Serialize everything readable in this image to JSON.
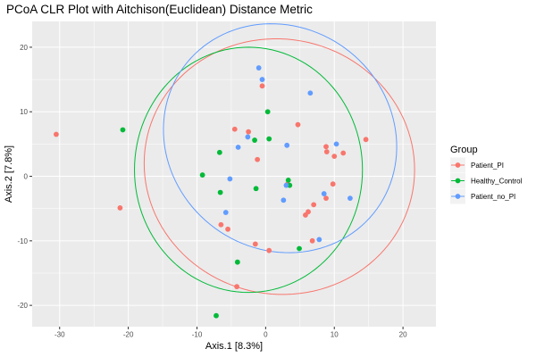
{
  "chart_data": {
    "type": "scatter",
    "title": "PCoA CLR Plot with Aitchison(Euclidean) Distance Metric",
    "xlabel": "Axis.1   [8.3%]",
    "ylabel": "Axis.2   [7.8%]",
    "xlim": [
      -34,
      24.8
    ],
    "ylim": [
      -23.3,
      24
    ],
    "x_ticks": [
      -30,
      -20,
      -10,
      0,
      10,
      20
    ],
    "y_ticks": [
      -20,
      -10,
      0,
      10,
      20
    ],
    "grid": true,
    "legend": {
      "title": "Group",
      "placement": "right"
    },
    "series": [
      {
        "name": "Patient_PI",
        "color": "#F8766D",
        "points": [
          [
            -30.5,
            6.5
          ],
          [
            -21.2,
            -4.9
          ],
          [
            -4.5,
            7.3
          ],
          [
            -2.5,
            6.9
          ],
          [
            -1.2,
            2.6
          ],
          [
            -6.5,
            -7.5
          ],
          [
            -5.5,
            -8.2
          ],
          [
            -1.5,
            -10.5
          ],
          [
            0.5,
            -11.5
          ],
          [
            -4.2,
            -17.1
          ],
          [
            -0.5,
            14.0
          ],
          [
            4.7,
            8.0
          ],
          [
            3.2,
            -1.2
          ],
          [
            6.2,
            -5.5
          ],
          [
            7.0,
            -4.4
          ],
          [
            5.8,
            -6.0
          ],
          [
            6.8,
            -10.0
          ],
          [
            8.8,
            -3.4
          ],
          [
            9.8,
            -1.2
          ],
          [
            8.8,
            4.6
          ],
          [
            8.9,
            3.8
          ],
          [
            11.3,
            3.6
          ],
          [
            10.0,
            3.1
          ],
          [
            14.6,
            5.7
          ]
        ]
      },
      {
        "name": "Healthy_Control",
        "color": "#00BA38",
        "points": [
          [
            -20.8,
            7.2
          ],
          [
            -9.2,
            0.2
          ],
          [
            -6.7,
            3.7
          ],
          [
            -6.6,
            -2.5
          ],
          [
            -1.6,
            5.6
          ],
          [
            0.3,
            10.0
          ],
          [
            0.5,
            5.8
          ],
          [
            -1.4,
            -1.9
          ],
          [
            3.3,
            -0.6
          ],
          [
            3.5,
            -1.4
          ],
          [
            4.9,
            -11.2
          ],
          [
            -4.1,
            -13.3
          ],
          [
            -7.2,
            -21.6
          ]
        ]
      },
      {
        "name": "Patient_no_PI",
        "color": "#619CFF",
        "points": [
          [
            -1.0,
            16.8
          ],
          [
            -0.5,
            15.0
          ],
          [
            -2.6,
            6.1
          ],
          [
            -4.0,
            4.5
          ],
          [
            -5.2,
            -0.4
          ],
          [
            -5.8,
            -5.6
          ],
          [
            2.6,
            -3.7
          ],
          [
            3.0,
            -1.4
          ],
          [
            3.1,
            4.8
          ],
          [
            6.5,
            12.9
          ],
          [
            10.3,
            5.0
          ],
          [
            8.5,
            -2.7
          ],
          [
            12.3,
            -3.4
          ],
          [
            7.8,
            -9.8
          ]
        ]
      }
    ],
    "ellipses": [
      {
        "group": "Patient_PI",
        "color": "#F8766D",
        "cx": 2.0,
        "cy": 1.5,
        "rx": 20.0,
        "ry": 19.5,
        "rotate": -52
      },
      {
        "group": "Healthy_Control",
        "color": "#00BA38",
        "cx": -2.5,
        "cy": 1.0,
        "rx": 16.6,
        "ry": 19.0,
        "rotate": 0
      },
      {
        "group": "Patient_no_PI",
        "color": "#619CFF",
        "cx": 2.1,
        "cy": 5.9,
        "rx": 18.1,
        "ry": 16.6,
        "rotate": -60
      }
    ]
  }
}
